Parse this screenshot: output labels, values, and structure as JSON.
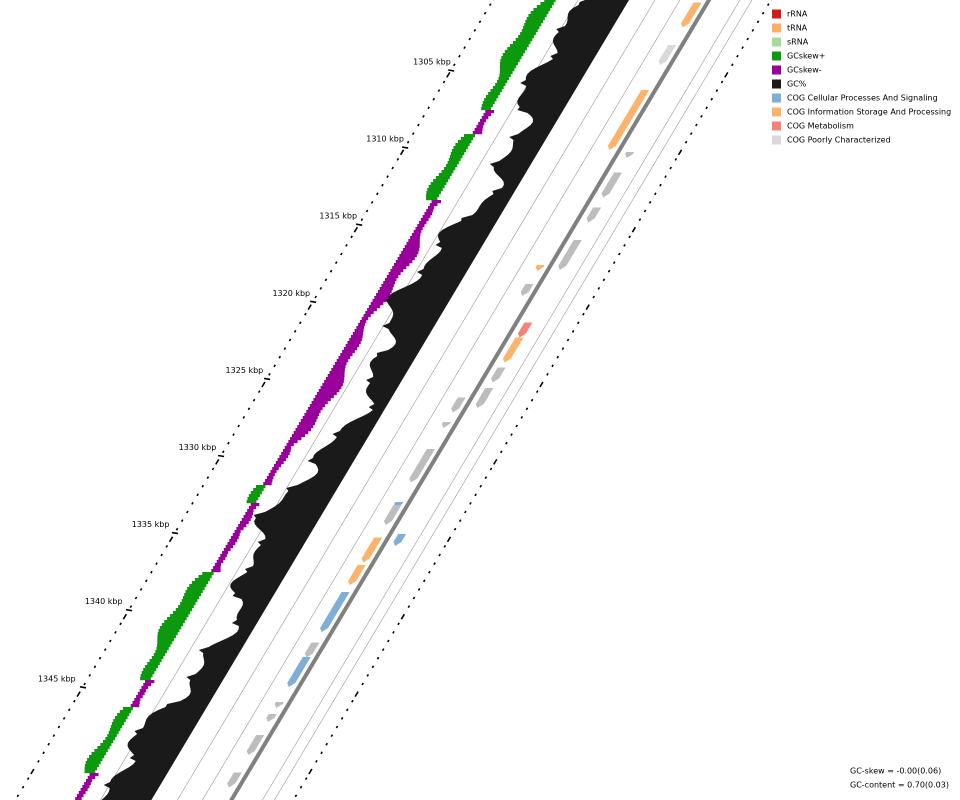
{
  "legend": {
    "items": [
      {
        "label": "rRNA",
        "color": "#d21c1c"
      },
      {
        "label": "tRNA",
        "color": "#fdae61"
      },
      {
        "label": "sRNA",
        "color": "#a6d99a"
      },
      {
        "label": "GCskew+",
        "color": "#0d990d"
      },
      {
        "label": "GCskew-",
        "color": "#990099"
      },
      {
        "label": "GC%",
        "color": "#1a1a1a"
      },
      {
        "label": "COG Cellular Processes And Signaling",
        "color": "#7faed6"
      },
      {
        "label": "COG Information Storage And Processing",
        "color": "#fdb36b"
      },
      {
        "label": "COG Metabolism",
        "color": "#f4837a"
      },
      {
        "label": "COG Poorly Characterized",
        "color": "#d9d9d9"
      }
    ]
  },
  "ticks": [
    "1305 kbp",
    "1310 kbp",
    "1315 kbp",
    "1320 kbp",
    "1325 kbp",
    "1330 kbp",
    "1335 kbp",
    "1340 kbp",
    "1345 kbp"
  ],
  "stats": [
    "GC-skew = -0.00(0.06)",
    "GC-content = 0.70(0.03)"
  ]
}
